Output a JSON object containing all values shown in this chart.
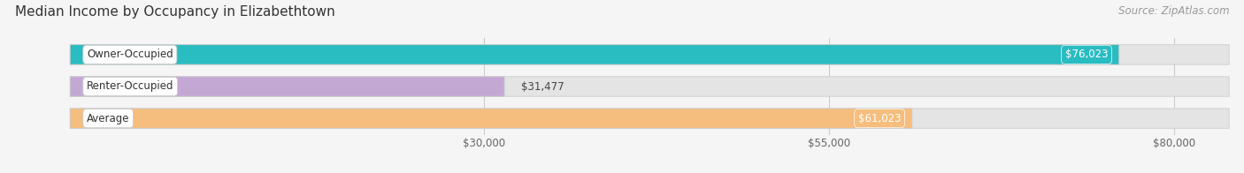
{
  "title": "Median Income by Occupancy in Elizabethtown",
  "source": "Source: ZipAtlas.com",
  "categories": [
    "Owner-Occupied",
    "Renter-Occupied",
    "Average"
  ],
  "values": [
    76023,
    31477,
    61023
  ],
  "labels": [
    "$76,023",
    "$31,477",
    "$61,023"
  ],
  "bar_colors": [
    "#29bcc1",
    "#c4a8d4",
    "#f5be7e"
  ],
  "bar_edge_color": "#cccccc",
  "xlim_min": -4000,
  "xlim_max": 84000,
  "xticks": [
    30000,
    55000,
    80000
  ],
  "xticklabels": [
    "$30,000",
    "$55,000",
    "$80,000"
  ],
  "title_fontsize": 11,
  "source_fontsize": 8.5,
  "label_fontsize": 8.5,
  "tick_fontsize": 8.5,
  "category_fontsize": 8.5,
  "background_color": "#f5f5f5",
  "bar_bg_color": "#e4e4e4",
  "bar_height": 0.62,
  "bar_spacing": 1.0,
  "rounding_size": 0.28
}
